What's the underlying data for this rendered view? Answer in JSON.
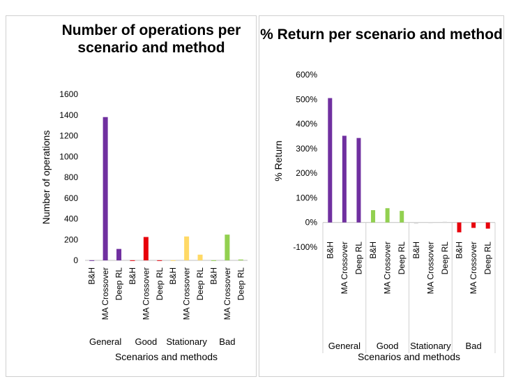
{
  "chart_data": [
    {
      "type": "bar",
      "title": "Number of operations per scenario and method",
      "xlabel": "Scenarios and methods",
      "ylabel": "Number of operations",
      "ylim": [
        0,
        1600
      ],
      "yticks": [
        "0",
        "200",
        "400",
        "600",
        "800",
        "1000",
        "1200",
        "1400",
        "1600"
      ],
      "groups": [
        "General",
        "Good",
        "Stationary",
        "Bad"
      ],
      "methods": [
        "B&H",
        "MA Crossover",
        "Deep RL"
      ],
      "series": [
        {
          "group": "General",
          "color": "#7030a0",
          "values": [
            1,
            1380,
            110
          ]
        },
        {
          "group": "Good",
          "color": "#e8000b",
          "values": [
            1,
            225,
            1
          ]
        },
        {
          "group": "Stationary",
          "color": "#ffd966",
          "values": [
            1,
            230,
            55
          ]
        },
        {
          "group": "Bad",
          "color": "#92d050",
          "values": [
            1,
            248,
            8
          ]
        }
      ],
      "grid": false
    },
    {
      "type": "bar",
      "title": "% Return per scenario and method",
      "xlabel": "Scenarios and methods",
      "ylabel": "% Return",
      "ylim": [
        -100,
        600
      ],
      "yticks": [
        "-100%",
        "0%",
        "100%",
        "200%",
        "300%",
        "400%",
        "500%",
        "600%"
      ],
      "groups": [
        "General",
        "Good",
        "Stationary",
        "Bad"
      ],
      "methods": [
        "B&H",
        "MA Crossover",
        "Deep RL"
      ],
      "series": [
        {
          "group": "General",
          "color": "#7030a0",
          "values": [
            505,
            352,
            343
          ]
        },
        {
          "group": "Good",
          "color": "#92d050",
          "values": [
            50,
            58,
            47
          ]
        },
        {
          "group": "Stationary",
          "color": "#d9d9d9",
          "values": [
            -5,
            -3,
            3
          ]
        },
        {
          "group": "Bad",
          "color": "#e8000b",
          "values": [
            -40,
            -22,
            -25
          ]
        }
      ],
      "grid": false
    }
  ]
}
